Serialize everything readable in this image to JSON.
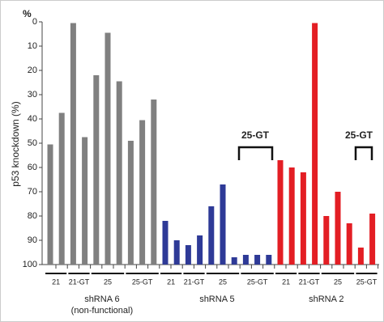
{
  "chart_data": {
    "type": "bar",
    "y_label": "p53 knockdown (%)",
    "y_unit": "%",
    "ylim": [
      0,
      100
    ],
    "inverted": true,
    "yticks": [
      0,
      10,
      20,
      30,
      40,
      50,
      60,
      70,
      80,
      90,
      100
    ],
    "annotations": [
      "25-GT",
      "25-GT"
    ],
    "groups": [
      {
        "label_lines": [
          "shRNA 6",
          "(non-functional)"
        ],
        "color": "#808080",
        "subgroups": [
          {
            "label": "21",
            "values": [
              50.5,
              37.5
            ]
          },
          {
            "label": "21-GT",
            "values": [
              0.5,
              47.5
            ]
          },
          {
            "label": "25",
            "values": [
              22,
              4.5,
              24.5
            ]
          },
          {
            "label": "25-GT",
            "values": [
              49,
              40.5,
              32
            ]
          }
        ]
      },
      {
        "label_lines": [
          "shRNA 5"
        ],
        "color": "#2e3a97",
        "subgroups": [
          {
            "label": "21",
            "values": [
              82,
              90
            ]
          },
          {
            "label": "21-GT",
            "values": [
              92,
              88
            ]
          },
          {
            "label": "25",
            "values": [
              76,
              67,
              97
            ]
          },
          {
            "label": "25-GT",
            "values": [
              96,
              96,
              96
            ]
          }
        ]
      },
      {
        "label_lines": [
          "shRNA 2"
        ],
        "color": "#e31e24",
        "subgroups": [
          {
            "label": "21",
            "values": [
              57,
              60
            ]
          },
          {
            "label": "21-GT",
            "values": [
              62,
              0.5
            ]
          },
          {
            "label": "25",
            "values": [
              80,
              70,
              83
            ]
          },
          {
            "label": "25-GT",
            "values": [
              93,
              79
            ]
          }
        ]
      }
    ]
  }
}
